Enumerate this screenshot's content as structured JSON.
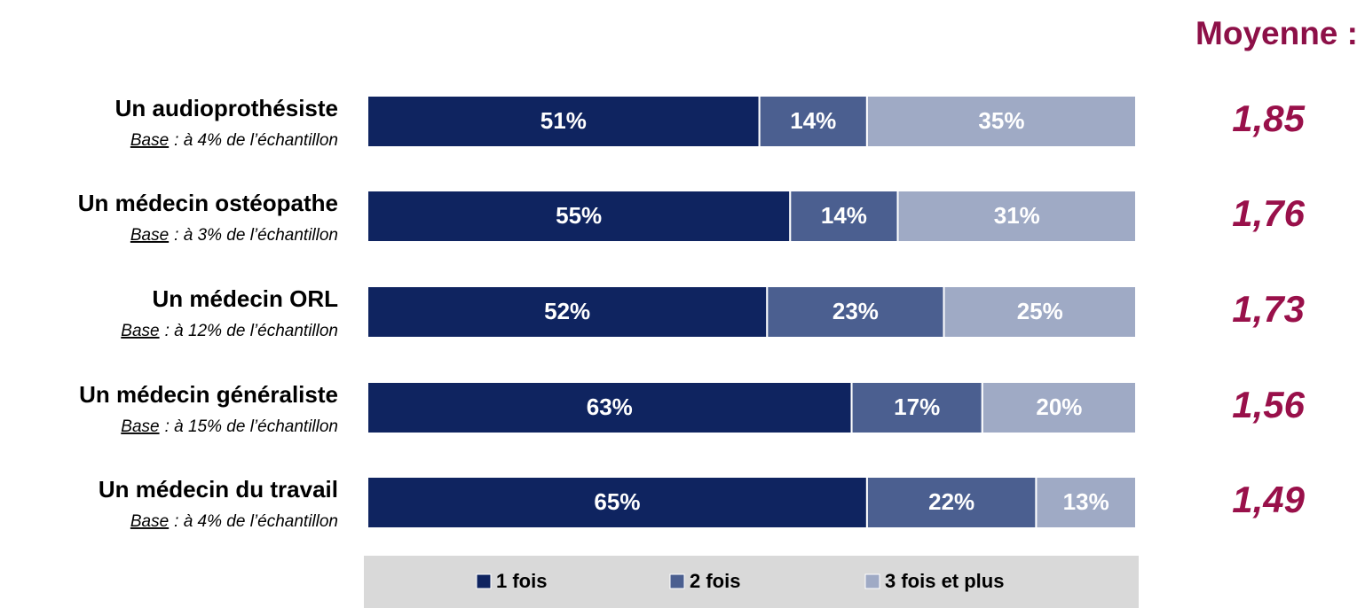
{
  "chart_data": {
    "type": "stacked-bar-horizontal",
    "categories": [
      "Un audioprothésiste",
      "Un médecin ostéopathe",
      "Un médecin ORL",
      "Un médecin généraliste",
      "Un médecin du travail"
    ],
    "subtitles": [
      {
        "term": "Base",
        "text": ": à 4% de l’échantillon"
      },
      {
        "term": "Base",
        "text": ": à 3% de l’échantillon"
      },
      {
        "term": "Base",
        "text": ": à 12% de l’échantillon"
      },
      {
        "term": "Base",
        "text": ": à 15% de l’échantillon"
      },
      {
        "term": "Base",
        "text": ": à 4% de l’échantillon"
      }
    ],
    "xlim": [
      0,
      100
    ],
    "series": [
      {
        "name": "1 fois",
        "color": "#0f2460",
        "values": [
          51,
          55,
          52,
          63,
          65
        ],
        "value_labels": [
          "51%",
          "55%",
          "52%",
          "63%",
          "65%"
        ]
      },
      {
        "name": "2 fois",
        "color": "#4b5f90",
        "values": [
          14,
          14,
          23,
          17,
          22
        ],
        "value_labels": [
          "14%",
          "14%",
          "23%",
          "17%",
          "22%"
        ]
      },
      {
        "name": "3 fois et plus",
        "color": "#9faac5",
        "values": [
          35,
          31,
          25,
          20,
          13
        ],
        "value_labels": [
          "35%",
          "31%",
          "25%",
          "20%",
          "13%"
        ]
      }
    ],
    "averages": {
      "title": "Moyenne :",
      "values": [
        1.85,
        1.76,
        1.73,
        1.56,
        1.49
      ],
      "value_labels": [
        "1,85",
        "1,76",
        "1,73",
        "1,56",
        "1,49"
      ],
      "color": "#99104a"
    }
  }
}
